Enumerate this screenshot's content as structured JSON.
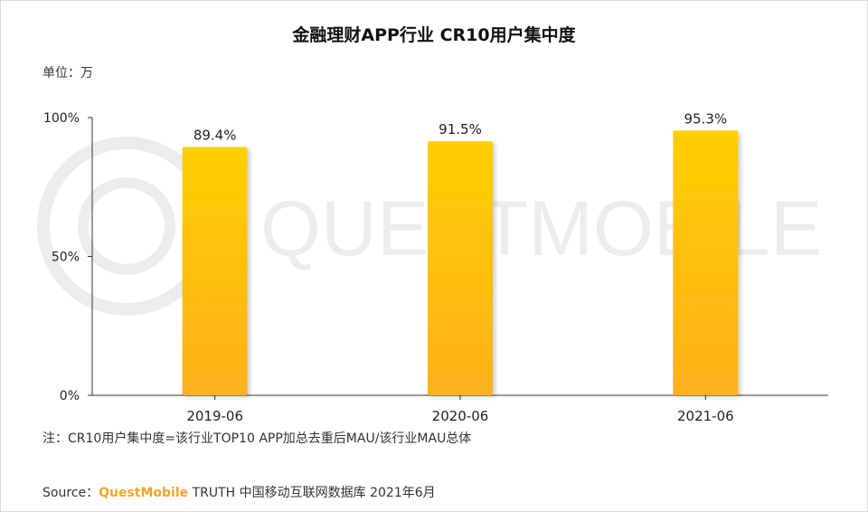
{
  "title": "金融理财APP行业 CR10用户集中度",
  "unit_label": "单位：万",
  "note": "注：CR10用户集中度=该行业TOP10 APP加总去重后MAU/该行业MAU总体",
  "source": {
    "prefix": "Source：",
    "brand": "QuestMobile",
    "rest": " TRUTH 中国移动互联网数据库 2021年6月"
  },
  "watermark": "QUESTMOBILE",
  "colors": {
    "bar_top": "#ffce00",
    "bar_bottom": "#ffb11c",
    "axis": "#333333",
    "text": "#222222",
    "brand": "#f5a623"
  },
  "chart_data": {
    "type": "bar",
    "categories": [
      "2019-06",
      "2020-06",
      "2021-06"
    ],
    "values": [
      89.4,
      91.5,
      95.3
    ],
    "value_labels": [
      "89.4%",
      "91.5%",
      "95.3%"
    ],
    "ylim": [
      0,
      100
    ],
    "yticks": [
      0,
      50,
      100
    ],
    "ytick_labels": [
      "0%",
      "50%",
      "100%"
    ],
    "grid": false
  }
}
